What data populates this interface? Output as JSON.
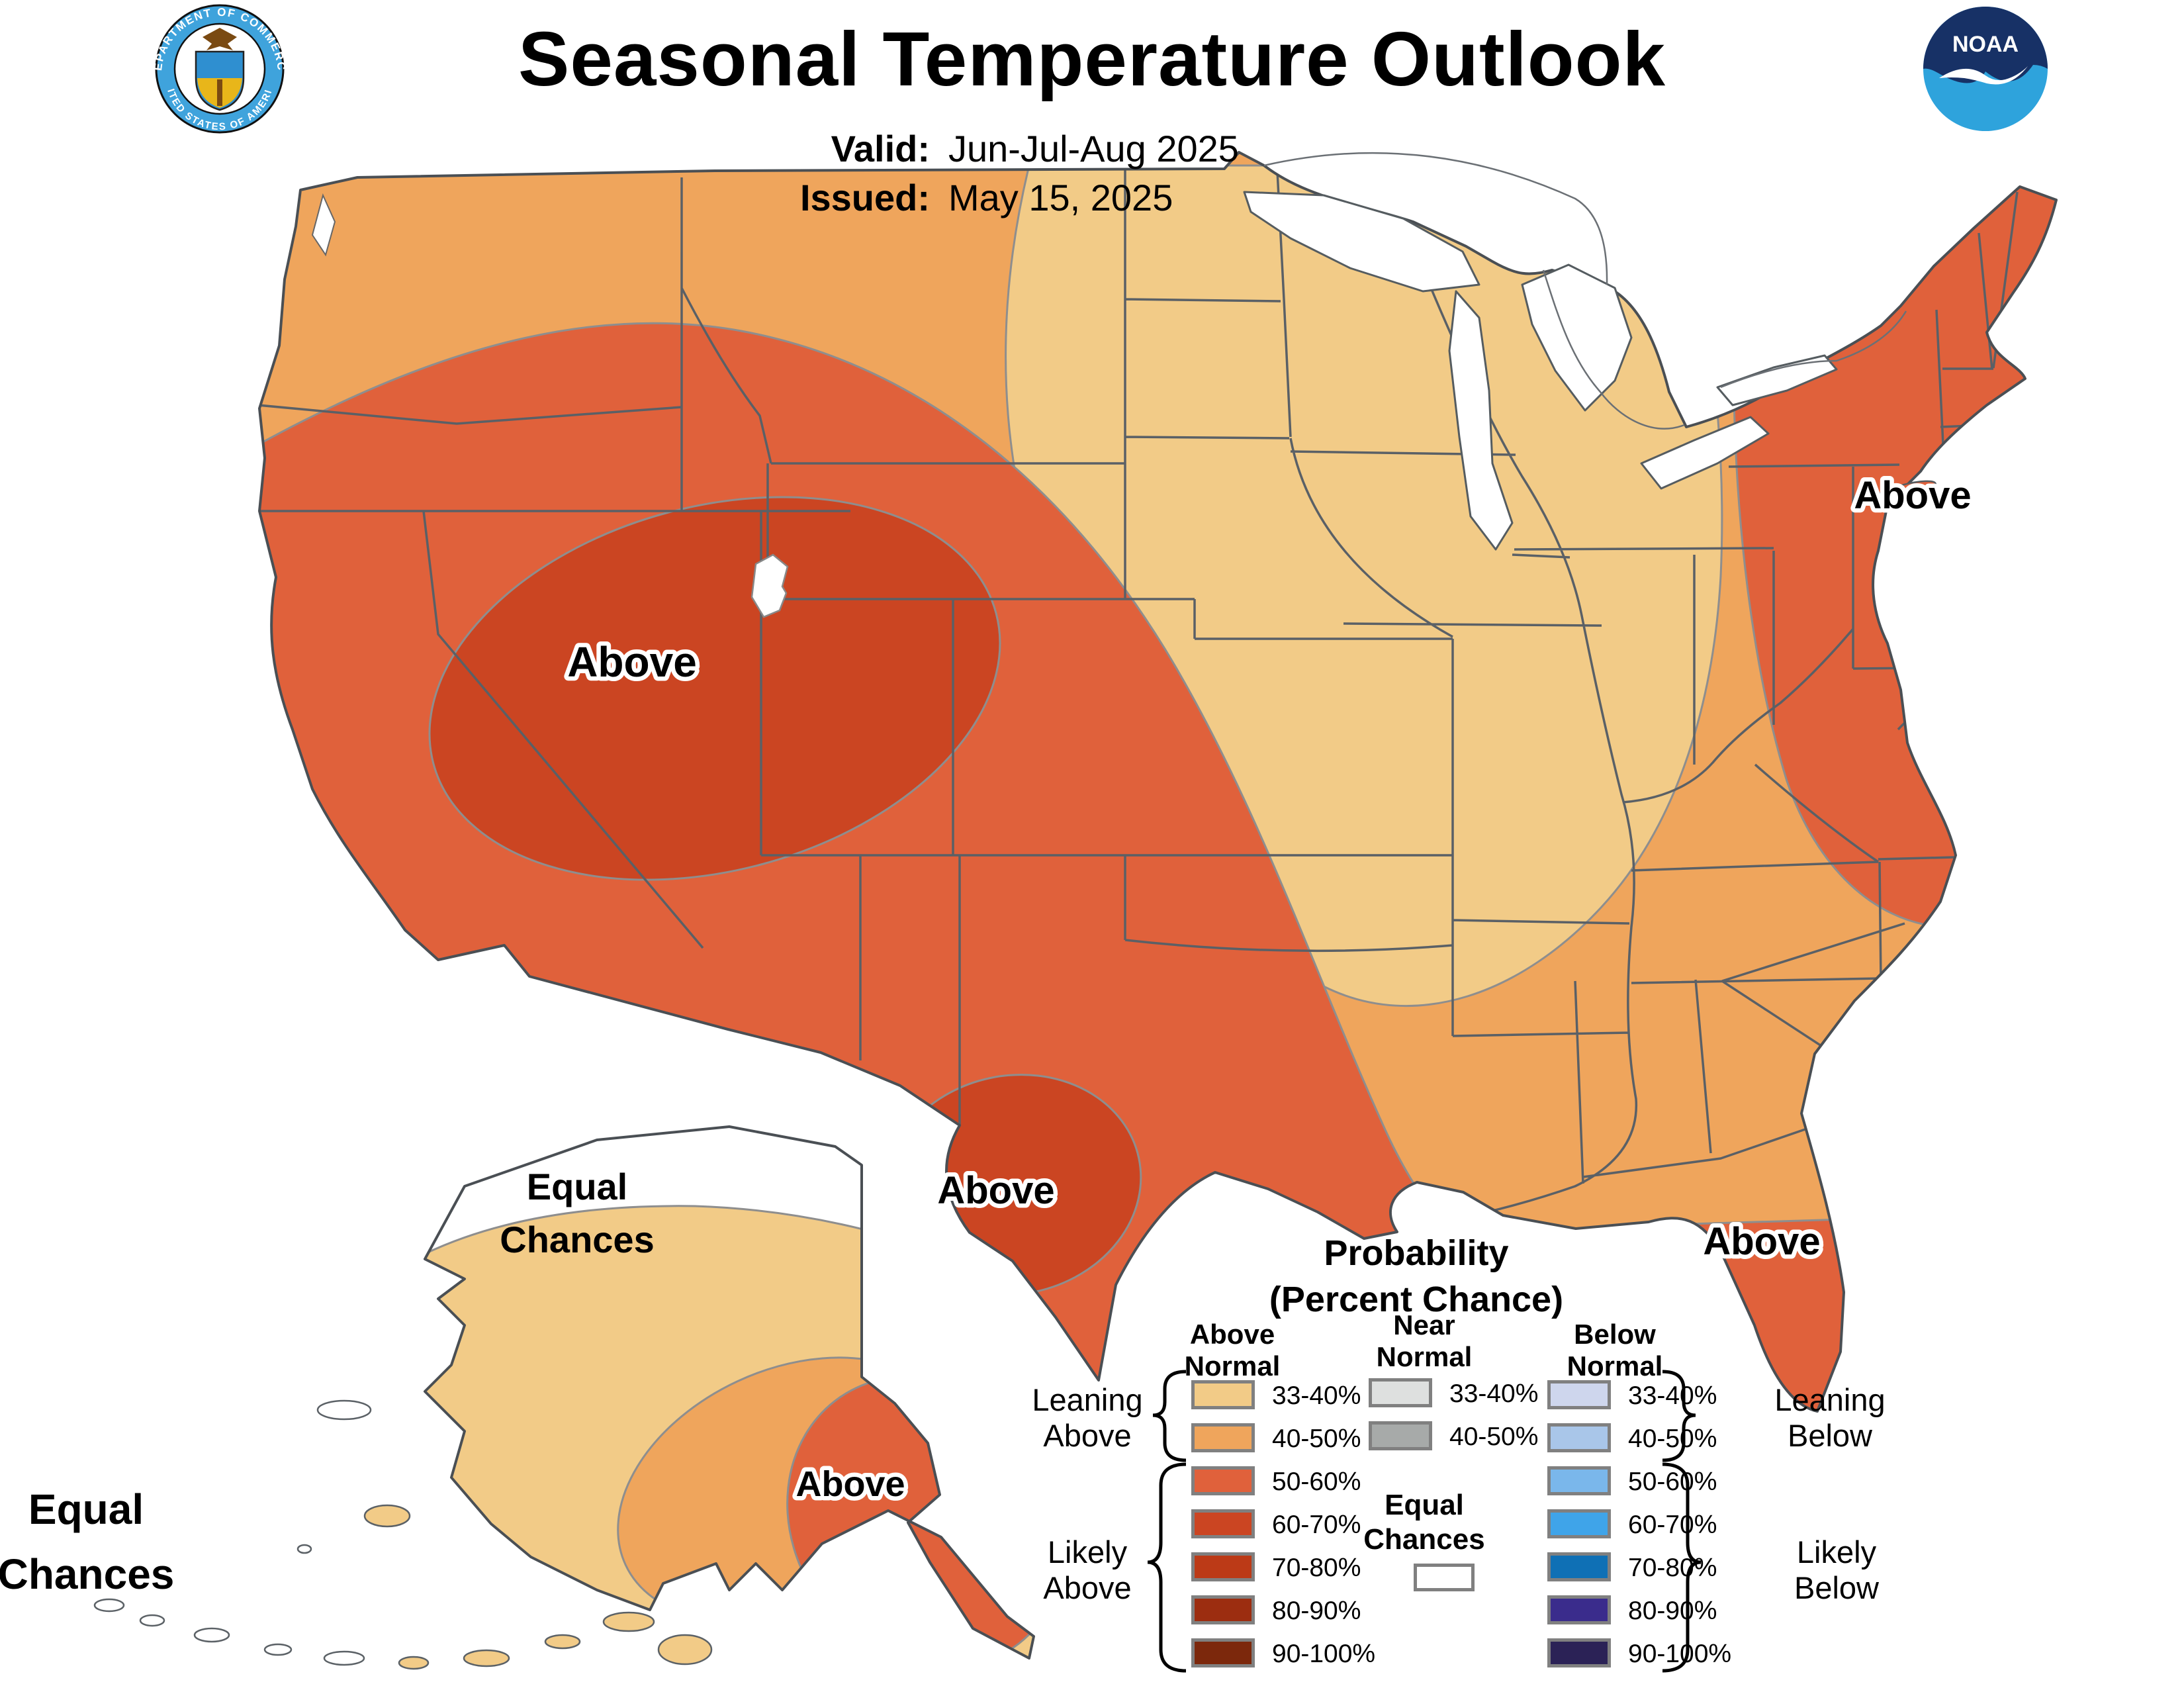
{
  "header": {
    "title": "Seasonal Temperature Outlook",
    "valid_label": "Valid:",
    "valid_value": "Jun-Jul-Aug 2025",
    "issued_label": "Issued:",
    "issued_value": "May 15, 2025",
    "noaa_logo_text": "NOAA",
    "doc_seal_top_text": "DEPARTMENT OF COMMERCE",
    "doc_seal_bottom_text": "UNITED STATES OF AMERICA"
  },
  "map": {
    "labels": {
      "above_west": "Above",
      "above_texas": "Above",
      "above_northeast": "Above",
      "above_florida": "Above",
      "above_alaska": "Above",
      "equal_chances_alaska_line1": "Equal",
      "equal_chances_alaska_line2": "Chances",
      "equal_chances_aleutians_line1": "Equal",
      "equal_chances_aleutians_line2": "Chances"
    },
    "colors": {
      "above_33_40": "#F2CB87",
      "above_40_50": "#EFA55C",
      "above_50_60": "#E0613B",
      "above_60_70": "#CB4522",
      "equal_chances": "#FFFFFF",
      "water": "#FFFFFF",
      "state_border": "#5A6066",
      "coast": "#4A4F54",
      "contour": "#8E8E8E"
    }
  },
  "legend": {
    "title_line1": "Probability",
    "title_line2": "(Percent Chance)",
    "columns": [
      {
        "header_line1": "Above",
        "header_line2": "Normal",
        "entries": [
          {
            "range": "33-40%",
            "color": "#F2CB87"
          },
          {
            "range": "40-50%",
            "color": "#EFA55C"
          },
          {
            "range": "50-60%",
            "color": "#E0613B"
          },
          {
            "range": "60-70%",
            "color": "#CB4522"
          },
          {
            "range": "70-80%",
            "color": "#BC3A17"
          },
          {
            "range": "80-90%",
            "color": "#9C2D10"
          },
          {
            "range": "90-100%",
            "color": "#7C280C"
          }
        ]
      },
      {
        "header_line1": "Near",
        "header_line2": "Normal",
        "entries": [
          {
            "range": "33-40%",
            "color": "#DEE0DF"
          },
          {
            "range": "40-50%",
            "color": "#A7AAA9"
          }
        ]
      },
      {
        "header_line1": "Below",
        "header_line2": "Normal",
        "entries": [
          {
            "range": "33-40%",
            "color": "#CED6ED"
          },
          {
            "range": "40-50%",
            "color": "#A9C6E9"
          },
          {
            "range": "50-60%",
            "color": "#7AB7EB"
          },
          {
            "range": "60-70%",
            "color": "#3FA4E9"
          },
          {
            "range": "70-80%",
            "color": "#0F70B5"
          },
          {
            "range": "80-90%",
            "color": "#3A2C8C"
          },
          {
            "range": "90-100%",
            "color": "#2B2256"
          }
        ]
      }
    ],
    "equal_chances": {
      "line1": "Equal",
      "line2": "Chances",
      "color": "#FFFFFF"
    },
    "side_labels": {
      "leaning_above_line1": "Leaning",
      "leaning_above_line2": "Above",
      "likely_above_line1": "Likely",
      "likely_above_line2": "Above",
      "leaning_below_line1": "Leaning",
      "leaning_below_line2": "Below",
      "likely_below_line1": "Likely",
      "likely_below_line2": "Below"
    }
  }
}
